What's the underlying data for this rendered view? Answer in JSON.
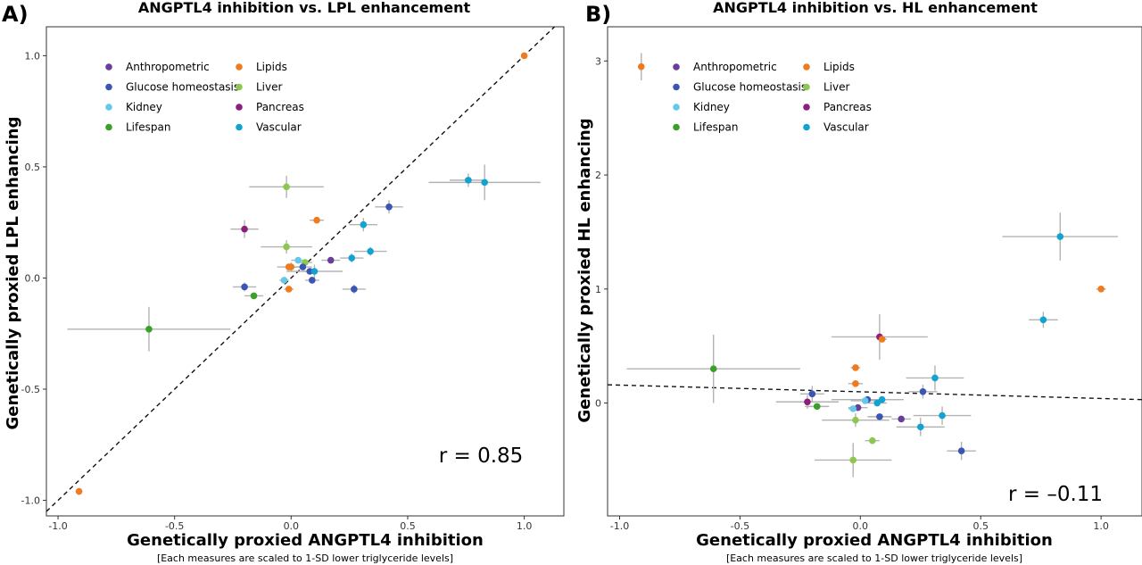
{
  "colors": {
    "Anthropometric": "#6a3d9a",
    "Glucose homeostasis": "#3a55b4",
    "Kidney": "#63c8ea",
    "Lifespan": "#3aa02a",
    "Lipids": "#f07a1e",
    "Liver": "#8cc850",
    "Pancreas": "#8e1e7e",
    "Vascular": "#12a3d3"
  },
  "legend": {
    "items": [
      "Anthropometric",
      "Lipids",
      "Glucose homeostasis",
      "Liver",
      "Kidney",
      "Pancreas",
      "Lifespan",
      "Vascular"
    ]
  },
  "footnote": "[Each measures are scaled to 1-SD lower triglyceride levels]",
  "chart_data": [
    {
      "type": "scatter",
      "panel": "A)",
      "title": "ANGPTL4 inhibition vs. LPL enhancement",
      "xlabel": "Genetically proxied ANGPTL4 inhibition",
      "ylabel": "Genetically proxied LPL enhancing",
      "xlim": [
        -1.05,
        1.17
      ],
      "ylim": [
        -1.07,
        1.13
      ],
      "xticks": [
        -1.0,
        -0.5,
        0.0,
        0.5,
        1.0
      ],
      "yticks": [
        -1.0,
        -0.5,
        0.0,
        0.5,
        1.0
      ],
      "xtick_labels": [
        "-1.0",
        "-0.5",
        "0.0",
        "0.5",
        "1.0"
      ],
      "ytick_labels": [
        "-1.0",
        "-0.5",
        "0.0",
        "0.5",
        "1.0"
      ],
      "reference_line": {
        "type": "identity",
        "points": [
          [
            -1.05,
            -1.05
          ],
          [
            1.13,
            1.13
          ]
        ]
      },
      "annotation": "r = 0.85",
      "points": [
        {
          "group": "Lipids",
          "x": 1.0,
          "y": 1.0,
          "xerr": 0,
          "yerr": 0
        },
        {
          "group": "Lipids",
          "x": -0.91,
          "y": -0.96,
          "xerr": 0,
          "yerr": 0
        },
        {
          "group": "Lifespan",
          "x": -0.61,
          "y": -0.23,
          "xerr": 0.35,
          "yerr": 0.1
        },
        {
          "group": "Liver",
          "x": -0.02,
          "y": 0.41,
          "xerr": 0.16,
          "yerr": 0.05
        },
        {
          "group": "Pancreas",
          "x": -0.2,
          "y": 0.22,
          "xerr": 0.06,
          "yerr": 0.04
        },
        {
          "group": "Lipids",
          "x": 0.11,
          "y": 0.26,
          "xerr": 0.03,
          "yerr": 0.01
        },
        {
          "group": "Vascular",
          "x": 0.76,
          "y": 0.44,
          "xerr": 0.08,
          "yerr": 0.03
        },
        {
          "group": "Vascular",
          "x": 0.83,
          "y": 0.43,
          "xerr": 0.24,
          "yerr": 0.08
        },
        {
          "group": "Glucose homeostasis",
          "x": 0.42,
          "y": 0.32,
          "xerr": 0.06,
          "yerr": 0.03
        },
        {
          "group": "Vascular",
          "x": 0.31,
          "y": 0.24,
          "xerr": 0.06,
          "yerr": 0.03
        },
        {
          "group": "Liver",
          "x": -0.02,
          "y": 0.14,
          "xerr": 0.11,
          "yerr": 0.03
        },
        {
          "group": "Vascular",
          "x": 0.34,
          "y": 0.12,
          "xerr": 0.07,
          "yerr": 0.02
        },
        {
          "group": "Vascular",
          "x": 0.26,
          "y": 0.09,
          "xerr": 0.05,
          "yerr": 0.02
        },
        {
          "group": "Anthropometric",
          "x": 0.17,
          "y": 0.08,
          "xerr": 0.04,
          "yerr": 0.01
        },
        {
          "group": "Kidney",
          "x": 0.03,
          "y": 0.08,
          "xerr": 0.03,
          "yerr": 0.01
        },
        {
          "group": "Liver",
          "x": 0.06,
          "y": 0.07,
          "xerr": 0.03,
          "yerr": 0.01
        },
        {
          "group": "Lipids",
          "x": -0.01,
          "y": 0.05,
          "xerr": 0.02,
          "yerr": 0.01
        },
        {
          "group": "Lipids",
          "x": 0.0,
          "y": 0.05,
          "xerr": 0.06,
          "yerr": 0.02
        },
        {
          "group": "Glucose homeostasis",
          "x": 0.05,
          "y": 0.05,
          "xerr": 0.04,
          "yerr": 0.01
        },
        {
          "group": "Glucose homeostasis",
          "x": 0.08,
          "y": 0.03,
          "xerr": 0.03,
          "yerr": 0.01
        },
        {
          "group": "Vascular",
          "x": 0.1,
          "y": 0.03,
          "xerr": 0.12,
          "yerr": 0.03
        },
        {
          "group": "Kidney",
          "x": -0.03,
          "y": -0.01,
          "xerr": 0.02,
          "yerr": 0.01
        },
        {
          "group": "Glucose homeostasis",
          "x": 0.09,
          "y": -0.01,
          "xerr": 0.03,
          "yerr": 0.01
        },
        {
          "group": "Glucose homeostasis",
          "x": -0.2,
          "y": -0.04,
          "xerr": 0.05,
          "yerr": 0.02
        },
        {
          "group": "Lipids",
          "x": -0.01,
          "y": -0.05,
          "xerr": 0.02,
          "yerr": 0.01
        },
        {
          "group": "Glucose homeostasis",
          "x": 0.27,
          "y": -0.05,
          "xerr": 0.05,
          "yerr": 0.02
        },
        {
          "group": "Lifespan",
          "x": -0.16,
          "y": -0.08,
          "xerr": 0.04,
          "yerr": 0.01
        }
      ]
    },
    {
      "type": "scatter",
      "panel": "B)",
      "title": "ANGPTL4 inhibition vs. HL enhancement",
      "xlabel": "Genetically proxied ANGPTL4 inhibition",
      "ylabel": "Genetically proxied HL enhancing",
      "xlim": [
        -1.05,
        1.17
      ],
      "ylim": [
        -0.99,
        3.3
      ],
      "xticks": [
        -1.0,
        -0.5,
        0.0,
        0.5,
        1.0
      ],
      "yticks": [
        0,
        1,
        2,
        3
      ],
      "xtick_labels": [
        "-1.0",
        "-0.5",
        "0.0",
        "0.5",
        "1.0"
      ],
      "ytick_labels": [
        "0",
        "1",
        "2",
        "3"
      ],
      "reference_line": {
        "type": "regression",
        "points": [
          [
            -1.05,
            0.16
          ],
          [
            1.17,
            0.03
          ]
        ]
      },
      "annotation": "r = –0.11",
      "points": [
        {
          "group": "Lipids",
          "x": -0.91,
          "y": 2.95,
          "xerr": 0,
          "yerr": 0.12
        },
        {
          "group": "Vascular",
          "x": 0.83,
          "y": 1.46,
          "xerr": 0.24,
          "yerr": 0.21
        },
        {
          "group": "Lipids",
          "x": 1.0,
          "y": 1.0,
          "xerr": 0.02,
          "yerr": 0.01
        },
        {
          "group": "Vascular",
          "x": 0.76,
          "y": 0.73,
          "xerr": 0.06,
          "yerr": 0.07
        },
        {
          "group": "Pancreas",
          "x": 0.08,
          "y": 0.58,
          "xerr": 0.2,
          "yerr": 0.2
        },
        {
          "group": "Lipids",
          "x": 0.09,
          "y": 0.56,
          "xerr": 0.02,
          "yerr": 0.02
        },
        {
          "group": "Lifespan",
          "x": -0.61,
          "y": 0.3,
          "xerr": 0.36,
          "yerr": 0.3
        },
        {
          "group": "Lipids",
          "x": -0.02,
          "y": 0.31,
          "xerr": 0.02,
          "yerr": 0.02
        },
        {
          "group": "Vascular",
          "x": 0.31,
          "y": 0.22,
          "xerr": 0.12,
          "yerr": 0.11
        },
        {
          "group": "Lipids",
          "x": -0.02,
          "y": 0.17,
          "xerr": 0.03,
          "yerr": 0.02
        },
        {
          "group": "Glucose homeostasis",
          "x": 0.26,
          "y": 0.1,
          "xerr": 0.06,
          "yerr": 0.06
        },
        {
          "group": "Glucose homeostasis",
          "x": -0.2,
          "y": 0.08,
          "xerr": 0.05,
          "yerr": 0.07
        },
        {
          "group": "Glucose homeostasis",
          "x": 0.03,
          "y": 0.03,
          "xerr": 0.15,
          "yerr": 0.02
        },
        {
          "group": "Vascular",
          "x": 0.09,
          "y": 0.03,
          "xerr": 0.08,
          "yerr": 0.02
        },
        {
          "group": "Kidney",
          "x": 0.02,
          "y": 0.02,
          "xerr": 0.06,
          "yerr": 0.02
        },
        {
          "group": "Vascular",
          "x": 0.07,
          "y": 0.0,
          "xerr": 0.04,
          "yerr": 0.02
        },
        {
          "group": "Pancreas",
          "x": -0.22,
          "y": 0.01,
          "xerr": 0.13,
          "yerr": 0.06
        },
        {
          "group": "Lifespan",
          "x": -0.18,
          "y": -0.03,
          "xerr": 0.05,
          "yerr": 0.02
        },
        {
          "group": "Anthropometric",
          "x": -0.01,
          "y": -0.04,
          "xerr": 0.04,
          "yerr": 0.02
        },
        {
          "group": "Kidney",
          "x": -0.03,
          "y": -0.05,
          "xerr": 0.02,
          "yerr": 0.02
        },
        {
          "group": "Vascular",
          "x": 0.34,
          "y": -0.11,
          "xerr": 0.12,
          "yerr": 0.08
        },
        {
          "group": "Glucose homeostasis",
          "x": 0.08,
          "y": -0.12,
          "xerr": 0.05,
          "yerr": 0.02
        },
        {
          "group": "Anthropometric",
          "x": 0.17,
          "y": -0.14,
          "xerr": 0.04,
          "yerr": 0.02
        },
        {
          "group": "Liver",
          "x": -0.02,
          "y": -0.15,
          "xerr": 0.14,
          "yerr": 0.06
        },
        {
          "group": "Vascular",
          "x": 0.25,
          "y": -0.21,
          "xerr": 0.1,
          "yerr": 0.08
        },
        {
          "group": "Liver",
          "x": 0.05,
          "y": -0.33,
          "xerr": 0.03,
          "yerr": 0.03
        },
        {
          "group": "Glucose homeostasis",
          "x": 0.42,
          "y": -0.42,
          "xerr": 0.06,
          "yerr": 0.08
        },
        {
          "group": "Liver",
          "x": -0.03,
          "y": -0.5,
          "xerr": 0.16,
          "yerr": 0.15
        }
      ]
    }
  ]
}
